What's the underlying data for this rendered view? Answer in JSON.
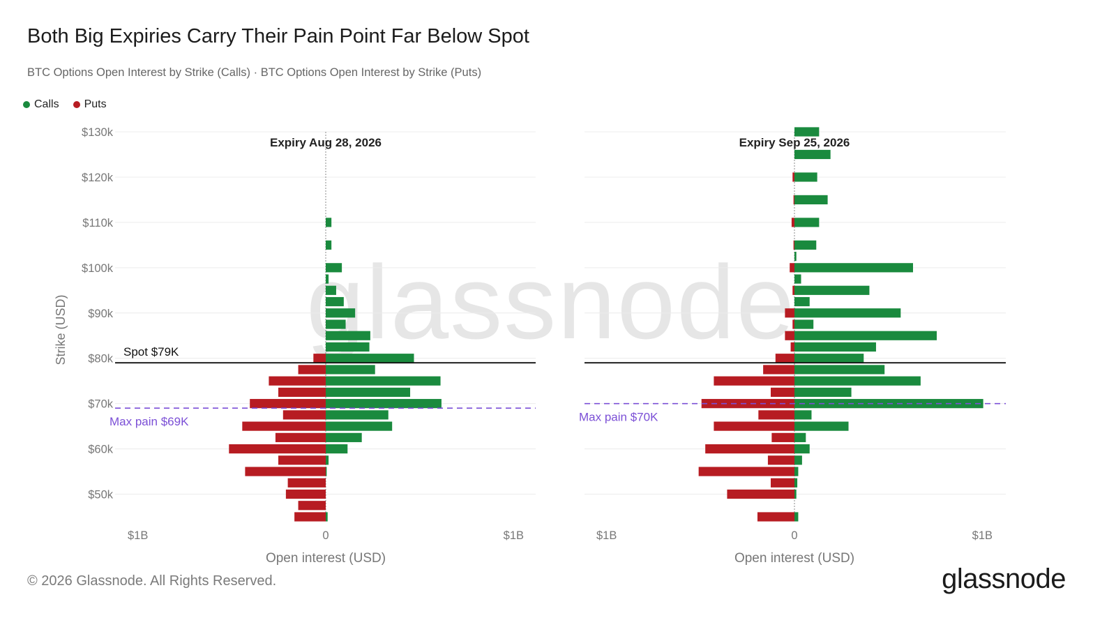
{
  "title": "Both Big Expiries Carry Their Pain Point Far Below Spot",
  "subtitle": "BTC Options Open Interest by Strike (Calls) · BTC Options Open Interest by Strike (Puts)",
  "legend": [
    {
      "label": "Calls",
      "color": "#1a8a3e"
    },
    {
      "label": "Puts",
      "color": "#b71c22"
    }
  ],
  "watermark": "glassnode",
  "footer": {
    "copyright": "© 2026 Glassnode. All Rights Reserved.",
    "logo": "glassnode"
  },
  "chart_data": {
    "type": "bar",
    "orientation": "horizontal",
    "ylabel": "Strike (USD)",
    "ylim": [
      45000,
      130000
    ],
    "y_ticks": [
      50000,
      60000,
      70000,
      80000,
      90000,
      100000,
      110000,
      120000,
      130000
    ],
    "y_tick_labels": [
      "$50k",
      "$60k",
      "$70k",
      "$80k",
      "$90k",
      "$100k",
      "$110k",
      "$120k",
      "$130k"
    ],
    "grid": true,
    "legend_position": "top-left",
    "colors": {
      "calls": "#1a8a3e",
      "puts": "#b71c22",
      "spot_line": "#111111",
      "max_pain_line": "#7b4fd6"
    },
    "panels": [
      {
        "title": "Expiry Aug 28, 2026",
        "xlabel": "Open interest (USD)",
        "x_tick_labels": [
          "$1B",
          "0",
          "$1B"
        ],
        "xlim": [
          -1.0,
          1.0
        ],
        "x_unit": "billions USD",
        "spot": {
          "value": 79000,
          "label": "Spot $79K"
        },
        "max_pain": {
          "value": 69000,
          "label": "Max pain $69K"
        },
        "strikes": [
          45000,
          47500,
          50000,
          52500,
          55000,
          57500,
          60000,
          62500,
          65000,
          67500,
          70000,
          72500,
          75000,
          77500,
          80000,
          82500,
          85000,
          87500,
          90000,
          92500,
          95000,
          97500,
          100000,
          105000,
          110000,
          115000,
          120000,
          125000,
          130000
        ],
        "calls": [
          0.01,
          0.0,
          0.0,
          0.0,
          0.005,
          0.015,
          0.115,
          0.19,
          0.35,
          0.33,
          0.61,
          0.445,
          0.605,
          0.26,
          0.465,
          0.23,
          0.235,
          0.105,
          0.155,
          0.095,
          0.055,
          0.015,
          0.085,
          0.03,
          0.03,
          0.0,
          0.0,
          0.0,
          0.0
        ],
        "puts": [
          -0.165,
          -0.145,
          -0.21,
          -0.2,
          -0.425,
          -0.25,
          -0.51,
          -0.265,
          -0.44,
          -0.225,
          -0.4,
          -0.25,
          -0.3,
          -0.145,
          -0.065,
          0.0,
          0.0,
          0.0,
          0.0,
          0.0,
          0.0,
          0.0,
          0.0,
          0.0,
          0.0,
          0.0,
          0.0,
          0.0,
          0.0
        ]
      },
      {
        "title": "Expiry Sep 25, 2026",
        "xlabel": "Open interest (USD)",
        "x_tick_labels": [
          "$1B",
          "0",
          "$1B"
        ],
        "xlim": [
          -1.0,
          1.0
        ],
        "x_unit": "billions USD",
        "spot": {
          "value": 79000,
          "label": ""
        },
        "max_pain": {
          "value": 70000,
          "label": "Max pain $70K"
        },
        "strikes": [
          45000,
          47500,
          50000,
          52500,
          55000,
          57500,
          60000,
          62500,
          65000,
          67500,
          70000,
          72500,
          75000,
          77500,
          80000,
          82500,
          85000,
          87500,
          90000,
          92500,
          95000,
          97500,
          100000,
          102500,
          105000,
          110000,
          115000,
          120000,
          125000,
          130000
        ],
        "calls": [
          0.02,
          0.0,
          0.01,
          0.015,
          0.02,
          0.04,
          0.08,
          0.06,
          0.285,
          0.09,
          0.995,
          0.3,
          0.665,
          0.475,
          0.365,
          0.43,
          0.75,
          0.1,
          0.56,
          0.08,
          0.395,
          0.035,
          0.625,
          0.01,
          0.115,
          0.13,
          0.175,
          0.12,
          0.19,
          0.13
        ],
        "puts": [
          -0.195,
          -0.0,
          -0.355,
          -0.125,
          -0.505,
          -0.14,
          -0.47,
          -0.12,
          -0.425,
          -0.19,
          -0.49,
          -0.125,
          -0.425,
          -0.165,
          -0.1,
          -0.02,
          -0.05,
          -0.01,
          -0.05,
          -0.0,
          -0.01,
          -0.0,
          -0.025,
          -0.0,
          -0.005,
          -0.015,
          -0.005,
          -0.01,
          -0.0,
          -0.0
        ]
      }
    ]
  }
}
